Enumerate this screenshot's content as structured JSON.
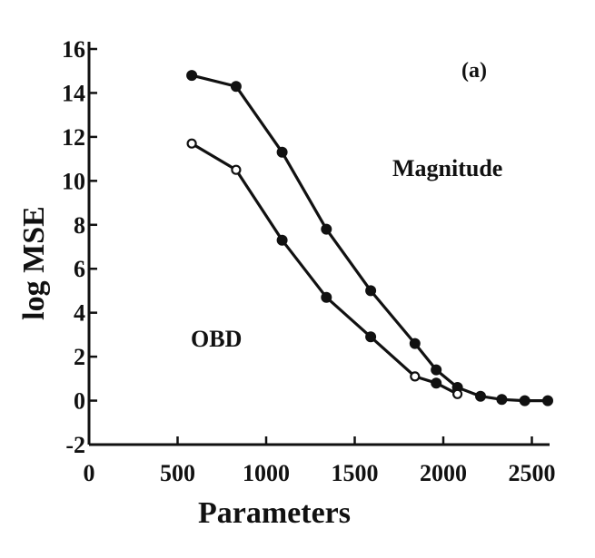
{
  "chart_data": {
    "type": "line",
    "panel_label": "(a)",
    "xlabel": "Parameters",
    "ylabel": "log MSE",
    "xlim": [
      0,
      2600
    ],
    "ylim": [
      -2,
      16
    ],
    "x_ticks": [
      0,
      500,
      1000,
      1500,
      2000,
      2500
    ],
    "y_ticks": [
      -2,
      0,
      2,
      4,
      6,
      8,
      10,
      12,
      14,
      16
    ],
    "grid": false,
    "annotations": [
      {
        "id": "magnitude",
        "text": "Magnitude"
      },
      {
        "id": "obd",
        "text": "OBD"
      }
    ],
    "series": [
      {
        "id": "magnitude",
        "name": "Magnitude",
        "marker": "filled",
        "points": [
          {
            "x": 580,
            "y": 14.8
          },
          {
            "x": 830,
            "y": 14.3
          },
          {
            "x": 1090,
            "y": 11.3
          },
          {
            "x": 1340,
            "y": 7.8
          },
          {
            "x": 1590,
            "y": 5.0
          },
          {
            "x": 1840,
            "y": 2.6
          },
          {
            "x": 1960,
            "y": 1.4
          },
          {
            "x": 2080,
            "y": 0.6
          },
          {
            "x": 2210,
            "y": 0.2
          },
          {
            "x": 2330,
            "y": 0.05
          },
          {
            "x": 2460,
            "y": 0.0
          },
          {
            "x": 2590,
            "y": 0.0
          }
        ]
      },
      {
        "id": "obd",
        "name": "OBD",
        "marker": "mixed",
        "points": [
          {
            "x": 580,
            "y": 11.7,
            "marker": "open"
          },
          {
            "x": 830,
            "y": 10.5,
            "marker": "open"
          },
          {
            "x": 1090,
            "y": 7.3,
            "marker": "filled"
          },
          {
            "x": 1340,
            "y": 4.7,
            "marker": "filled"
          },
          {
            "x": 1590,
            "y": 2.9,
            "marker": "filled"
          },
          {
            "x": 1840,
            "y": 1.1,
            "marker": "open"
          },
          {
            "x": 1960,
            "y": 0.8,
            "marker": "filled"
          },
          {
            "x": 2080,
            "y": 0.3,
            "marker": "open"
          }
        ]
      }
    ],
    "colors": {
      "line": "#111111",
      "background": "#ffffff"
    }
  }
}
